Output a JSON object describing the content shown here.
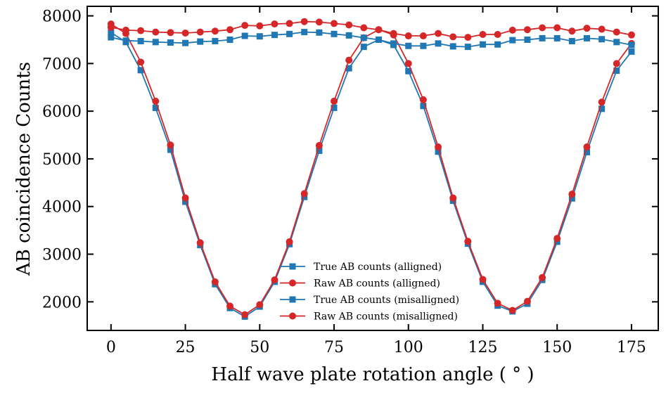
{
  "chart_data": {
    "type": "line",
    "title": "",
    "xlabel": "Half wave plate rotation angle ( ° )",
    "ylabel": "AB coincidence Counts",
    "xlim": [
      -8,
      184
    ],
    "ylim": [
      1400,
      8200
    ],
    "xticks": [
      0,
      25,
      50,
      75,
      100,
      125,
      150,
      175
    ],
    "yticks": [
      2000,
      3000,
      4000,
      5000,
      6000,
      7000,
      8000
    ],
    "grid": false,
    "legend_position": "bottom-center",
    "x": [
      0,
      5,
      10,
      15,
      20,
      25,
      30,
      35,
      40,
      45,
      50,
      55,
      60,
      65,
      70,
      75,
      80,
      85,
      90,
      95,
      100,
      105,
      110,
      115,
      120,
      125,
      130,
      135,
      140,
      145,
      150,
      155,
      160,
      165,
      170,
      175
    ],
    "series": [
      {
        "name": "True AB counts (alligned)",
        "color": "#1f77b4",
        "marker": "square",
        "values": [
          7650,
          7450,
          6860,
          6070,
          5190,
          4100,
          3190,
          2370,
          1870,
          1690,
          1900,
          2420,
          3210,
          4200,
          5170,
          6070,
          6900,
          7350,
          7500,
          7390,
          6840,
          6110,
          5150,
          4120,
          3220,
          2420,
          1920,
          1800,
          1960,
          2460,
          3260,
          4170,
          5140,
          6050,
          6850,
          7250
        ]
      },
      {
        "name": "Raw AB counts (alligned)",
        "color": "#d62728",
        "marker": "circle",
        "values": [
          7830,
          7630,
          7030,
          6210,
          5290,
          4180,
          3240,
          2420,
          1910,
          1730,
          1940,
          2460,
          3260,
          4270,
          5280,
          6210,
          7070,
          7540,
          7710,
          7600,
          7000,
          6240,
          5250,
          4180,
          3270,
          2470,
          1970,
          1820,
          2010,
          2510,
          3330,
          4260,
          5250,
          6190,
          7000,
          7420
        ]
      },
      {
        "name": "True AB counts (misalligned)",
        "color": "#1f77b4",
        "marker": "square",
        "values": [
          7550,
          7480,
          7470,
          7450,
          7440,
          7430,
          7460,
          7470,
          7500,
          7580,
          7570,
          7600,
          7620,
          7660,
          7650,
          7620,
          7590,
          7540,
          7500,
          7420,
          7370,
          7370,
          7420,
          7360,
          7350,
          7400,
          7400,
          7490,
          7500,
          7530,
          7530,
          7470,
          7530,
          7510,
          7450,
          7390
        ]
      },
      {
        "name": "Raw AB counts (misalligned)",
        "color": "#d62728",
        "marker": "circle",
        "values": [
          7760,
          7700,
          7690,
          7660,
          7650,
          7640,
          7660,
          7680,
          7710,
          7800,
          7790,
          7830,
          7840,
          7880,
          7870,
          7840,
          7810,
          7750,
          7710,
          7630,
          7580,
          7580,
          7630,
          7560,
          7550,
          7610,
          7610,
          7700,
          7710,
          7750,
          7750,
          7680,
          7740,
          7720,
          7660,
          7600
        ]
      }
    ]
  }
}
